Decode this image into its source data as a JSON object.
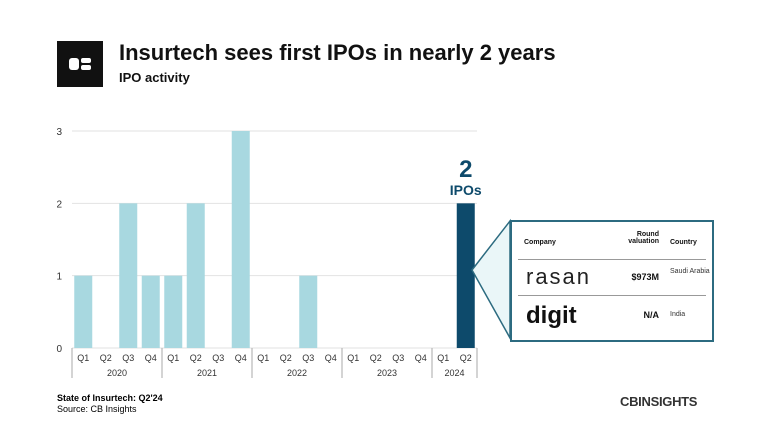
{
  "header": {
    "title": "Insurtech sees first IPOs in nearly 2 years",
    "subtitle": "IPO activity"
  },
  "chart_data": {
    "type": "bar",
    "title": "Insurtech sees first IPOs in nearly 2 years",
    "subtitle": "IPO activity",
    "categories": [
      "Q1 2020",
      "Q2 2020",
      "Q3 2020",
      "Q4 2020",
      "Q1 2021",
      "Q2 2021",
      "Q3 2021",
      "Q4 2021",
      "Q1 2022",
      "Q2 2022",
      "Q3 2022",
      "Q4 2022",
      "Q1 2023",
      "Q2 2023",
      "Q3 2023",
      "Q4 2023",
      "Q1 2024",
      "Q2 2024"
    ],
    "quarter_labels": [
      "Q1",
      "Q2",
      "Q3",
      "Q4",
      "Q1",
      "Q2",
      "Q3",
      "Q4",
      "Q1",
      "Q2",
      "Q3",
      "Q4",
      "Q1",
      "Q2",
      "Q3",
      "Q4",
      "Q1",
      "Q2"
    ],
    "years": [
      "2020",
      "2021",
      "2022",
      "2023",
      "2024"
    ],
    "values": [
      1,
      0,
      2,
      1,
      1,
      2,
      0,
      3,
      0,
      0,
      1,
      0,
      0,
      0,
      0,
      0,
      0,
      2
    ],
    "ylim": [
      0,
      3
    ],
    "yticks": [
      "0",
      "1",
      "2",
      "3"
    ],
    "grid": true,
    "colors": {
      "default": "#a8d8e0",
      "highlight": "#0d4a6b"
    },
    "annotation": {
      "value": "2",
      "label": "IPOs"
    }
  },
  "table": {
    "headers": [
      "Company",
      "Round valuation",
      "Country"
    ],
    "rows": [
      {
        "company": "rasan",
        "valuation": "$973M",
        "country": "Saudi Arabia"
      },
      {
        "company": "digit",
        "valuation": "N/A",
        "country": "India"
      }
    ]
  },
  "footer": {
    "report": "State of Insurtech: Q2'24",
    "source": "Source: CB Insights",
    "brand": "CBINSIGHTS"
  }
}
